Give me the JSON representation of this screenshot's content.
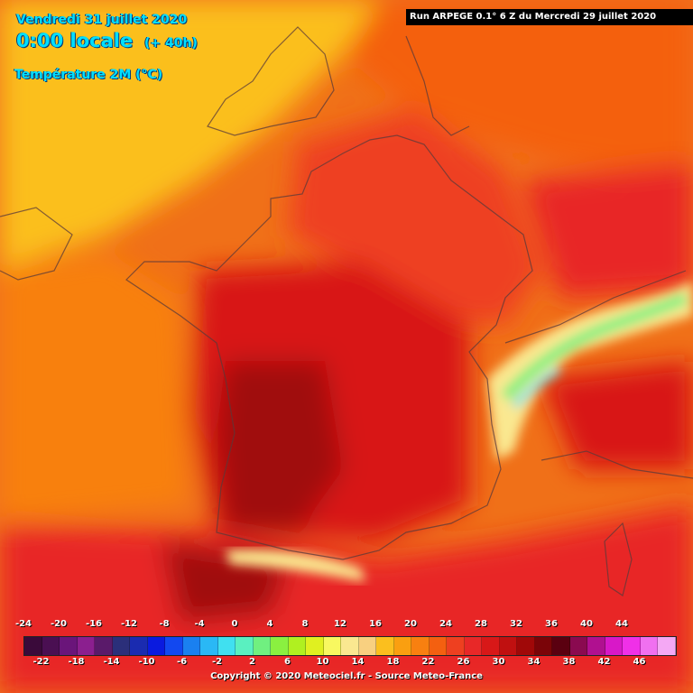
{
  "header": {
    "date": "Vendredi 31 juillet 2020",
    "time": "0:00 locale",
    "lead": "(+ 40h)",
    "parameter": "Température 2M (°C)"
  },
  "run_info": "Run ARPEGE 0.1° 6 Z du Mercredi 29 juillet 2020",
  "legend": {
    "top_ticks": [
      "-24",
      "-20",
      "-16",
      "-12",
      "-8",
      "-4",
      "0",
      "4",
      "8",
      "12",
      "16",
      "20",
      "24",
      "28",
      "32",
      "36",
      "40",
      "44"
    ],
    "bottom_ticks": [
      "-22",
      "-18",
      "-14",
      "-10",
      "-6",
      "-2",
      "2",
      "6",
      "10",
      "14",
      "18",
      "22",
      "26",
      "30",
      "34",
      "38",
      "42",
      "46"
    ],
    "colors": [
      "#3a0a3a",
      "#4a0f52",
      "#6a157a",
      "#8b1f8f",
      "#5a1a6a",
      "#2b2f7a",
      "#1a2bb0",
      "#0a1adf",
      "#1248f0",
      "#1a80f0",
      "#2ab8f5",
      "#40e0f0",
      "#5af0c0",
      "#70f080",
      "#8af040",
      "#b0f020",
      "#e0f020",
      "#f8f860",
      "#fae890",
      "#f8d080",
      "#fbbf1e",
      "#fa9f10",
      "#f88010",
      "#f46010",
      "#ee4020",
      "#e82828",
      "#d81818",
      "#c01010",
      "#a00808",
      "#7a0408",
      "#5a0010",
      "#8a0a50",
      "#b01090",
      "#d818c8",
      "#f030e8",
      "#f070f0",
      "#f4a8f4"
    ],
    "copyright": "Copyright © 2020 Meteociel.fr - Source Meteo-France"
  }
}
